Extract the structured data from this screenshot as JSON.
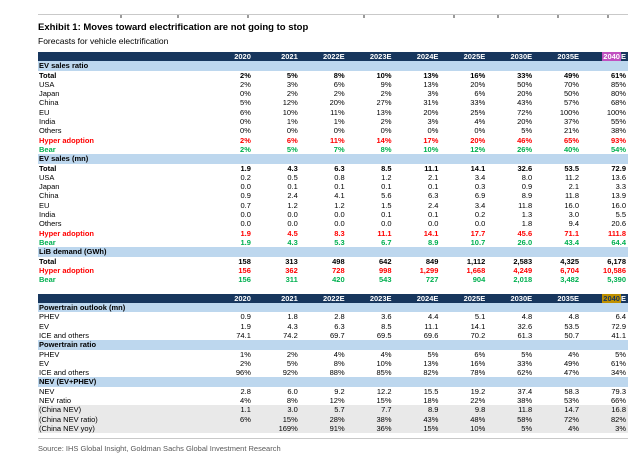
{
  "page": {
    "title": "Exhibit 1: Moves toward electrification are not going to stop",
    "subtitle": "Forecasts for vehicle electrification",
    "source": "Source: IHS Global Insight, Goldman Sachs Global Investment Research"
  },
  "colors": {
    "header_navy": "#17365D",
    "section_blue": "#BDD7EE",
    "hyper_adoption_red": "#FF0000",
    "bear_green": "#00B050",
    "china_row_gray": "#E9E9E9",
    "highlight_magenta": "#C050C0",
    "highlight_gold": "#BF9000"
  },
  "table": {
    "columns": [
      "2020",
      "2021",
      "2022E",
      "2023E",
      "2024E",
      "2025E",
      "2030E",
      "2035E",
      "2040E"
    ],
    "highlight": {
      "index": 8,
      "main": "2040",
      "suffix": "E"
    },
    "blocks": [
      {
        "highlight_class": "hl-m",
        "sections": [
          {
            "title": "EV sales ratio",
            "rows": [
              {
                "label": "Total",
                "style": [
                  "bold"
                ],
                "values": [
                  "2%",
                  "5%",
                  "8%",
                  "10%",
                  "13%",
                  "16%",
                  "33%",
                  "49%",
                  "61%"
                ]
              },
              {
                "label": "USA",
                "style": [
                  "indent1"
                ],
                "values": [
                  "2%",
                  "3%",
                  "6%",
                  "9%",
                  "13%",
                  "20%",
                  "50%",
                  "70%",
                  "85%"
                ]
              },
              {
                "label": "Japan",
                "style": [
                  "indent1"
                ],
                "values": [
                  "0%",
                  "2%",
                  "2%",
                  "2%",
                  "3%",
                  "6%",
                  "20%",
                  "50%",
                  "80%"
                ]
              },
              {
                "label": "China",
                "style": [
                  "indent1"
                ],
                "values": [
                  "5%",
                  "12%",
                  "20%",
                  "27%",
                  "31%",
                  "33%",
                  "43%",
                  "57%",
                  "68%"
                ]
              },
              {
                "label": "EU",
                "style": [
                  "indent1"
                ],
                "values": [
                  "6%",
                  "10%",
                  "11%",
                  "13%",
                  "20%",
                  "25%",
                  "72%",
                  "100%",
                  "100%"
                ]
              },
              {
                "label": "India",
                "style": [
                  "indent1"
                ],
                "values": [
                  "0%",
                  "1%",
                  "1%",
                  "2%",
                  "3%",
                  "4%",
                  "20%",
                  "37%",
                  "55%"
                ]
              },
              {
                "label": "Others",
                "style": [
                  "indent1"
                ],
                "values": [
                  "0%",
                  "0%",
                  "0%",
                  "0%",
                  "0%",
                  "0%",
                  "5%",
                  "21%",
                  "38%"
                ]
              },
              {
                "label": "Hyper adoption",
                "style": [
                  "red"
                ],
                "values": [
                  "2%",
                  "6%",
                  "11%",
                  "14%",
                  "17%",
                  "20%",
                  "46%",
                  "65%",
                  "93%"
                ]
              },
              {
                "label": "Bear",
                "style": [
                  "green"
                ],
                "values": [
                  "2%",
                  "5%",
                  "7%",
                  "8%",
                  "10%",
                  "12%",
                  "26%",
                  "40%",
                  "54%"
                ]
              }
            ]
          },
          {
            "title": "EV sales (mn)",
            "rows": [
              {
                "label": "Total",
                "style": [
                  "bold"
                ],
                "values": [
                  "1.9",
                  "4.3",
                  "6.3",
                  "8.5",
                  "11.1",
                  "14.1",
                  "32.6",
                  "53.5",
                  "72.9"
                ]
              },
              {
                "label": "USA",
                "style": [
                  "indent1"
                ],
                "values": [
                  "0.2",
                  "0.5",
                  "0.8",
                  "1.2",
                  "2.1",
                  "3.4",
                  "8.0",
                  "11.2",
                  "13.6"
                ]
              },
              {
                "label": "Japan",
                "style": [
                  "indent1"
                ],
                "values": [
                  "0.0",
                  "0.1",
                  "0.1",
                  "0.1",
                  "0.1",
                  "0.3",
                  "0.9",
                  "2.1",
                  "3.3"
                ]
              },
              {
                "label": "China",
                "style": [
                  "indent1"
                ],
                "values": [
                  "0.9",
                  "2.4",
                  "4.1",
                  "5.6",
                  "6.3",
                  "6.9",
                  "8.9",
                  "11.8",
                  "13.9"
                ]
              },
              {
                "label": "EU",
                "style": [
                  "indent1"
                ],
                "values": [
                  "0.7",
                  "1.2",
                  "1.2",
                  "1.5",
                  "2.4",
                  "3.4",
                  "11.8",
                  "16.0",
                  "16.0"
                ]
              },
              {
                "label": "India",
                "style": [
                  "indent1"
                ],
                "values": [
                  "0.0",
                  "0.0",
                  "0.0",
                  "0.1",
                  "0.1",
                  "0.2",
                  "1.3",
                  "3.0",
                  "5.5"
                ]
              },
              {
                "label": "Others",
                "style": [
                  "indent1"
                ],
                "values": [
                  "0.0",
                  "0.0",
                  "0.0",
                  "0.0",
                  "0.0",
                  "0.0",
                  "1.8",
                  "9.4",
                  "20.6"
                ]
              },
              {
                "label": "Hyper adoption",
                "style": [
                  "red"
                ],
                "values": [
                  "1.9",
                  "4.5",
                  "8.3",
                  "11.1",
                  "14.1",
                  "17.7",
                  "45.6",
                  "71.1",
                  "111.8"
                ]
              },
              {
                "label": "Bear",
                "style": [
                  "green"
                ],
                "values": [
                  "1.9",
                  "4.3",
                  "5.3",
                  "6.7",
                  "8.9",
                  "10.7",
                  "26.0",
                  "43.4",
                  "64.4"
                ]
              }
            ]
          },
          {
            "title": "LiB demand (GWh)",
            "rows": [
              {
                "label": "Total",
                "style": [
                  "bold"
                ],
                "values": [
                  "158",
                  "313",
                  "498",
                  "642",
                  "849",
                  "1,112",
                  "2,583",
                  "4,325",
                  "6,178"
                ]
              },
              {
                "label": "Hyper adoption",
                "style": [
                  "red"
                ],
                "values": [
                  "156",
                  "362",
                  "728",
                  "998",
                  "1,299",
                  "1,668",
                  "4,249",
                  "6,704",
                  "10,586"
                ]
              },
              {
                "label": "Bear",
                "style": [
                  "green"
                ],
                "values": [
                  "156",
                  "311",
                  "420",
                  "543",
                  "727",
                  "904",
                  "2,018",
                  "3,482",
                  "5,390"
                ]
              }
            ]
          }
        ]
      },
      {
        "highlight_class": "hl-g",
        "sections": [
          {
            "title": "Powertrain outlook (mn)",
            "rows": [
              {
                "label": "PHEV",
                "style": [
                  "indent1"
                ],
                "values": [
                  "0.9",
                  "1.8",
                  "2.8",
                  "3.6",
                  "4.4",
                  "5.1",
                  "4.8",
                  "4.8",
                  "6.4"
                ]
              },
              {
                "label": "EV",
                "style": [
                  "indent1"
                ],
                "values": [
                  "1.9",
                  "4.3",
                  "6.3",
                  "8.5",
                  "11.1",
                  "14.1",
                  "32.6",
                  "53.5",
                  "72.9"
                ]
              },
              {
                "label": "ICE and others",
                "style": [
                  "indent1"
                ],
                "values": [
                  "74.1",
                  "74.2",
                  "69.7",
                  "69.5",
                  "69.6",
                  "70.2",
                  "61.3",
                  "50.7",
                  "41.1"
                ]
              }
            ]
          },
          {
            "title": "Powertrain ratio",
            "rows": [
              {
                "label": "PHEV",
                "style": [
                  "indent1"
                ],
                "values": [
                  "1%",
                  "2%",
                  "4%",
                  "4%",
                  "5%",
                  "6%",
                  "5%",
                  "4%",
                  "5%"
                ]
              },
              {
                "label": "EV",
                "style": [
                  "indent1"
                ],
                "values": [
                  "2%",
                  "5%",
                  "8%",
                  "10%",
                  "13%",
                  "16%",
                  "33%",
                  "49%",
                  "61%"
                ]
              },
              {
                "label": "ICE and others",
                "style": [
                  "indent1"
                ],
                "values": [
                  "96%",
                  "92%",
                  "88%",
                  "85%",
                  "82%",
                  "78%",
                  "62%",
                  "47%",
                  "34%"
                ]
              }
            ]
          },
          {
            "title": "NEV (EV+PHEV)",
            "rows": [
              {
                "label": "NEV",
                "style": [
                  "indent1"
                ],
                "values": [
                  "2.8",
                  "6.0",
                  "9.2",
                  "12.2",
                  "15.5",
                  "19.2",
                  "37.4",
                  "58.3",
                  "79.3"
                ]
              },
              {
                "label": "NEV ratio",
                "style": [
                  "indent2"
                ],
                "values": [
                  "4%",
                  "8%",
                  "12%",
                  "15%",
                  "18%",
                  "22%",
                  "38%",
                  "53%",
                  "66%"
                ]
              },
              {
                "label": "(China NEV)",
                "style": [
                  "gray",
                  "indent1"
                ],
                "values": [
                  "1.1",
                  "3.0",
                  "5.7",
                  "7.7",
                  "8.9",
                  "9.8",
                  "11.8",
                  "14.7",
                  "16.8"
                ]
              },
              {
                "label": "(China NEV ratio)",
                "style": [
                  "gray",
                  "indent1"
                ],
                "values": [
                  "6%",
                  "15%",
                  "28%",
                  "38%",
                  "43%",
                  "48%",
                  "58%",
                  "72%",
                  "82%"
                ]
              },
              {
                "label": "(China NEV yoy)",
                "style": [
                  "gray",
                  "indent1"
                ],
                "values": [
                  "",
                  "169%",
                  "91%",
                  "36%",
                  "15%",
                  "10%",
                  "5%",
                  "4%",
                  "3%"
                ]
              }
            ]
          }
        ]
      }
    ]
  }
}
